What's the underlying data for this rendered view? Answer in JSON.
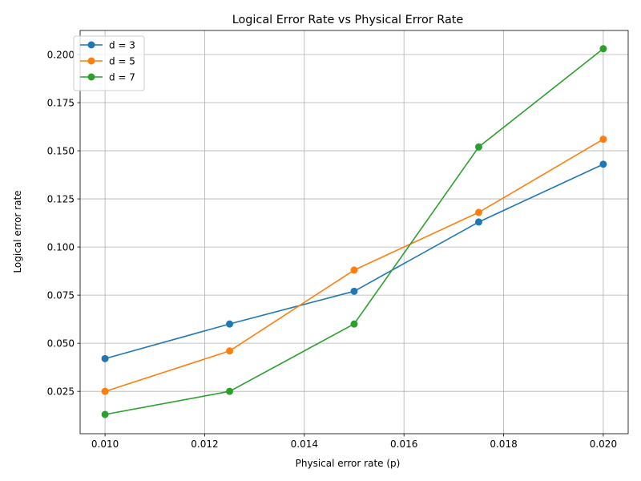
{
  "chart_data": {
    "type": "line",
    "title": "Logical Error Rate vs Physical Error Rate",
    "xlabel": "Physical error rate (p)",
    "ylabel": "Logical error rate",
    "x": [
      0.01,
      0.0125,
      0.015,
      0.0175,
      0.02
    ],
    "xlim": [
      0.0095,
      0.0205
    ],
    "ylim": [
      0.003,
      0.2125
    ],
    "xticks": [
      0.01,
      0.012,
      0.014,
      0.016,
      0.018,
      0.02
    ],
    "xtick_labels": [
      "0.010",
      "0.012",
      "0.014",
      "0.016",
      "0.018",
      "0.020"
    ],
    "yticks": [
      0.025,
      0.05,
      0.075,
      0.1,
      0.125,
      0.15,
      0.175,
      0.2
    ],
    "ytick_labels": [
      "0.025",
      "0.050",
      "0.075",
      "0.100",
      "0.125",
      "0.150",
      "0.175",
      "0.200"
    ],
    "grid": true,
    "legend_position": "top-left",
    "series": [
      {
        "name": "d = 3",
        "color": "#1f77b4",
        "marker": "circle",
        "values": [
          0.042,
          0.06,
          0.077,
          0.113,
          0.143
        ]
      },
      {
        "name": "d = 5",
        "color": "#ff7f0e",
        "marker": "circle",
        "values": [
          0.025,
          0.046,
          0.088,
          0.118,
          0.156
        ]
      },
      {
        "name": "d = 7",
        "color": "#2ca02c",
        "marker": "circle",
        "values": [
          0.013,
          0.025,
          0.06,
          0.152,
          0.203
        ]
      }
    ]
  }
}
